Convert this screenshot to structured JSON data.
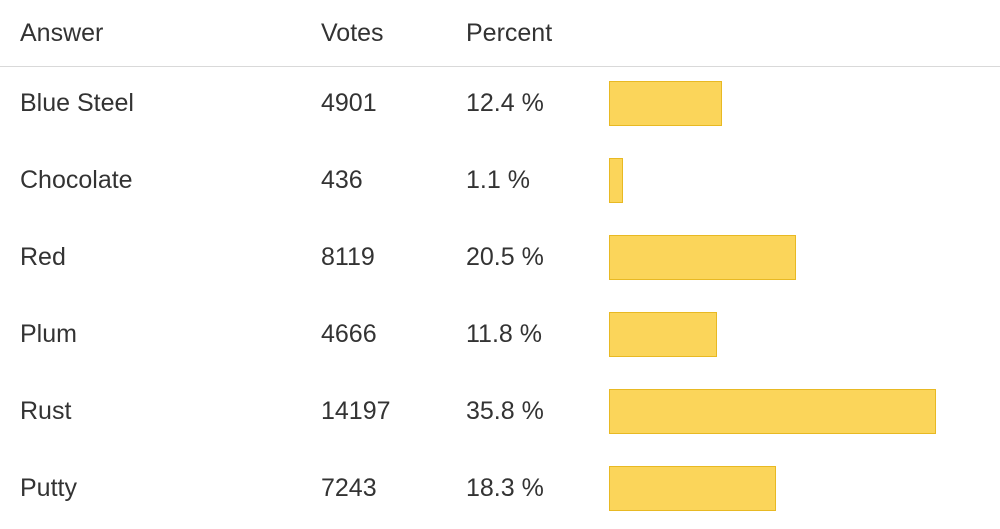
{
  "table": {
    "headers": {
      "answer": "Answer",
      "votes": "Votes",
      "percent": "Percent"
    }
  },
  "chart_data": {
    "type": "bar",
    "orientation": "horizontal",
    "categories": [
      "Blue Steel",
      "Chocolate",
      "Red",
      "Plum",
      "Rust",
      "Putty"
    ],
    "votes": [
      "4901",
      "436",
      "8119",
      "4666",
      "14197",
      "7243"
    ],
    "percent_labels": [
      "12.4 %",
      "1.1 %",
      "20.5 %",
      "11.8 %",
      "35.8 %",
      "18.3 %"
    ],
    "values": [
      12.4,
      1.1,
      20.5,
      11.8,
      35.8,
      18.3
    ],
    "xlim": [
      0,
      35.8
    ],
    "bar_color": "#fbd55a",
    "bar_border_color": "#e8b923"
  }
}
